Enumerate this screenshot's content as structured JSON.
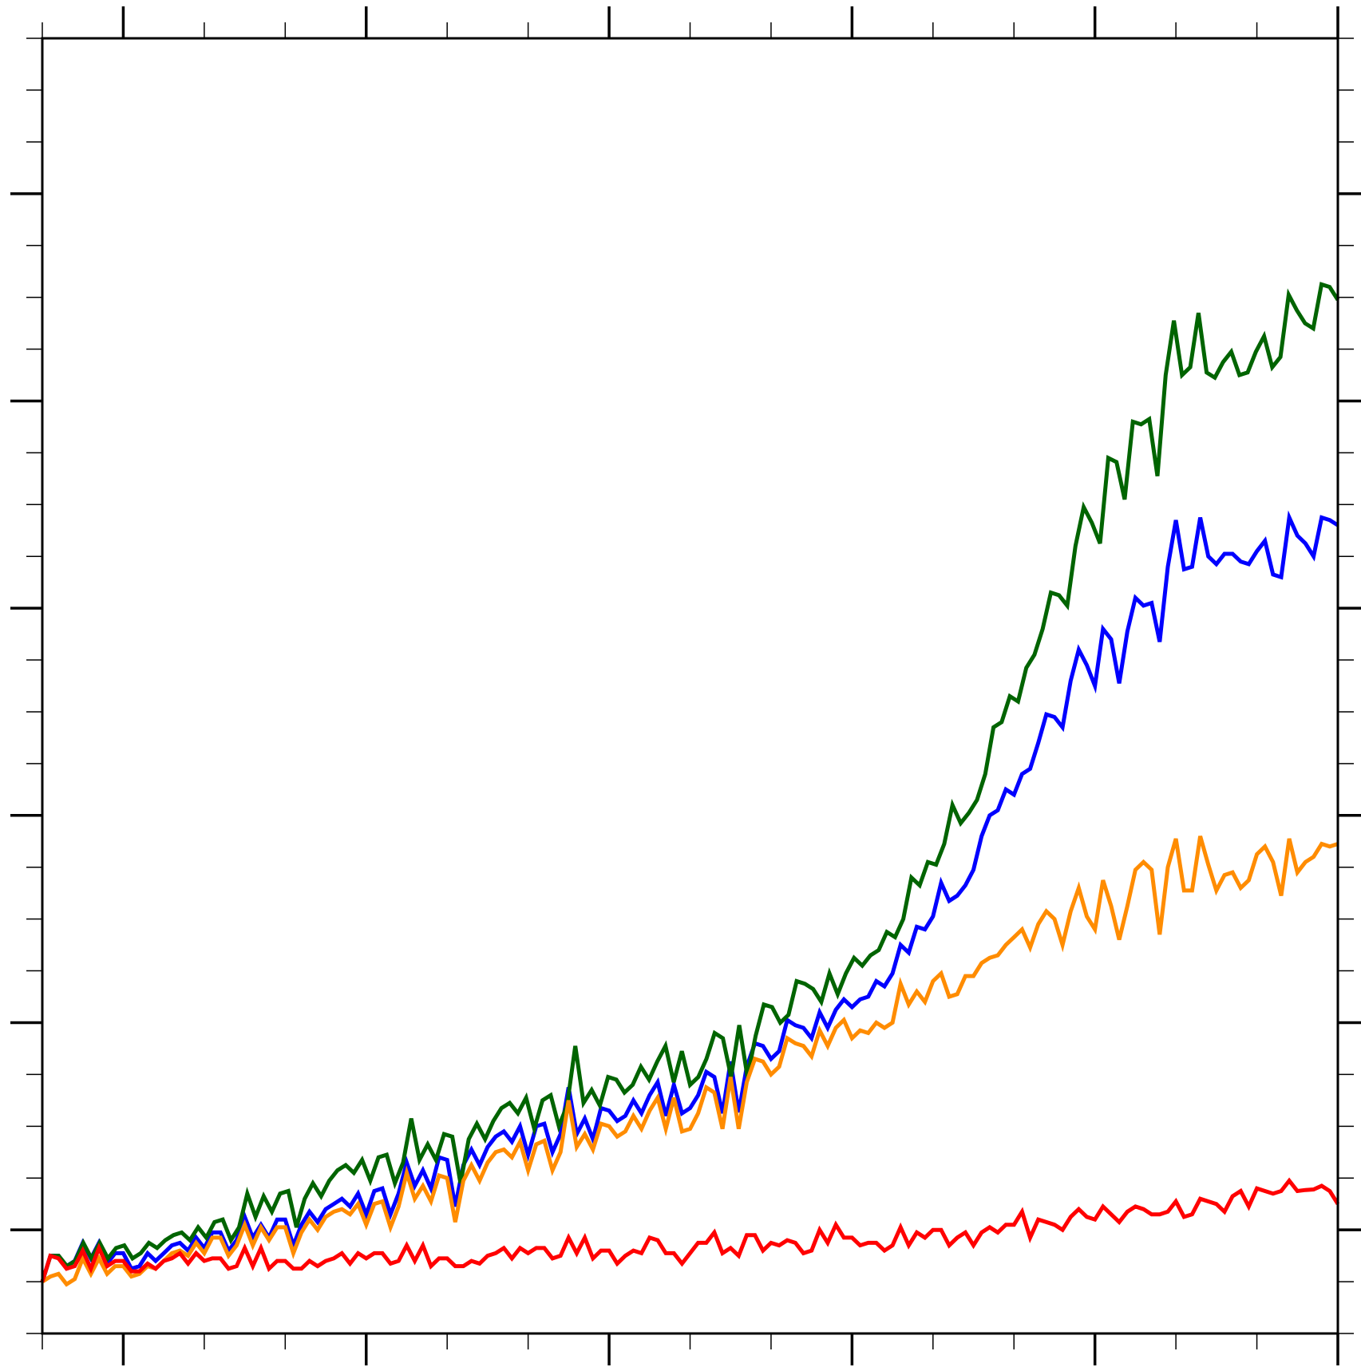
{
  "chart_data": {
    "type": "line",
    "title": "",
    "xlabel": "",
    "ylabel": "",
    "xlim": [
      0,
      160
    ],
    "ylim": [
      -2,
      23
    ],
    "x_major_step": 30,
    "x_minor_step": 10,
    "y_major_step": 4,
    "y_minor_step": 1,
    "grid": false,
    "legend": "none",
    "series": [
      {
        "color": "#0000ff",
        "values": [
          -1,
          -0.5,
          -0.5,
          -0.7,
          -0.6,
          -0.25,
          -0.55,
          -0.25,
          -0.65,
          -0.45,
          -0.45,
          -0.75,
          -0.7,
          -0.45,
          -0.6,
          -0.45,
          -0.3,
          -0.25,
          -0.4,
          -0.15,
          -0.35,
          -0.05,
          -0.05,
          -0.4,
          -0.2,
          0.25,
          -0.15,
          0.1,
          -0.15,
          0.2,
          0.2,
          -0.3,
          0.1,
          0.35,
          0.15,
          0.4,
          0.5,
          0.6,
          0.45,
          0.7,
          0.3,
          0.75,
          0.8,
          0.3,
          0.7,
          1.3,
          0.85,
          1.15,
          0.8,
          1.4,
          1.35,
          0.45,
          1.25,
          1.55,
          1.25,
          1.6,
          1.8,
          1.9,
          1.7,
          2,
          1.45,
          2,
          2.05,
          1.5,
          1.85,
          2.75,
          1.85,
          2.15,
          1.75,
          2.35,
          2.3,
          2.1,
          2.2,
          2.5,
          2.25,
          2.6,
          2.85,
          2.2,
          2.8,
          2.25,
          2.35,
          2.6,
          3.05,
          2.95,
          2.25,
          3.25,
          2.27,
          3.15,
          3.6,
          3.55,
          3.3,
          3.45,
          4.05,
          3.95,
          3.9,
          3.7,
          4.2,
          3.9,
          4.25,
          4.45,
          4.3,
          4.45,
          4.5,
          4.8,
          4.7,
          4.95,
          5.5,
          5.35,
          5.85,
          5.8,
          6.05,
          6.7,
          6.35,
          6.45,
          6.65,
          6.95,
          7.6,
          8.0,
          8.1,
          8.5,
          8.4,
          8.8,
          8.9,
          9.4,
          9.95,
          9.9,
          9.7,
          10.6,
          11.2,
          10.9,
          10.5,
          11.6,
          11.4,
          10.55,
          11.55,
          12.2,
          12.05,
          12.1,
          11.35,
          12.8,
          13.7,
          12.75,
          12.8,
          13.75,
          13.0,
          12.85,
          13.05,
          13.05,
          12.9,
          12.85,
          13.1,
          13.3,
          12.65,
          12.6,
          13.75,
          13.4,
          13.25,
          13.0,
          13.75,
          13.7,
          13.6
        ]
      },
      {
        "color": "#006400",
        "values": [
          -1,
          -0.5,
          -0.5,
          -0.7,
          -0.6,
          -0.25,
          -0.55,
          -0.25,
          -0.55,
          -0.35,
          -0.3,
          -0.55,
          -0.45,
          -0.25,
          -0.35,
          -0.2,
          -0.1,
          -0.05,
          -0.2,
          0.05,
          -0.15,
          0.15,
          0.2,
          -0.2,
          0.05,
          0.7,
          0.25,
          0.65,
          0.35,
          0.7,
          0.75,
          0.05,
          0.6,
          0.9,
          0.65,
          0.95,
          1.15,
          1.25,
          1.1,
          1.35,
          0.95,
          1.4,
          1.45,
          0.9,
          1.3,
          2.15,
          1.35,
          1.65,
          1.35,
          1.85,
          1.8,
          0.9,
          1.75,
          2.05,
          1.75,
          2.1,
          2.35,
          2.45,
          2.25,
          2.55,
          1.95,
          2.5,
          2.6,
          2.0,
          2.4,
          3.55,
          2.45,
          2.7,
          2.4,
          2.95,
          2.9,
          2.65,
          2.8,
          3.15,
          2.9,
          3.25,
          3.55,
          2.85,
          3.45,
          2.8,
          2.95,
          3.3,
          3.8,
          3.7,
          2.95,
          3.95,
          2.95,
          3.75,
          4.35,
          4.3,
          4.0,
          4.15,
          4.8,
          4.75,
          4.65,
          4.4,
          4.95,
          4.55,
          4.95,
          5.25,
          5.1,
          5.3,
          5.4,
          5.75,
          5.65,
          6.0,
          6.8,
          6.65,
          7.1,
          7.05,
          7.45,
          8.2,
          7.85,
          8.05,
          8.3,
          8.8,
          9.7,
          9.8,
          10.3,
          10.2,
          10.85,
          11.1,
          11.6,
          12.3,
          12.25,
          12.05,
          13.2,
          13.95,
          13.65,
          13.25,
          14.9,
          14.82,
          14.1,
          15.6,
          15.55,
          15.65,
          14.55,
          16.5,
          17.55,
          16.5,
          16.65,
          17.7,
          16.55,
          16.45,
          16.75,
          16.95,
          16.5,
          16.55,
          16.95,
          17.25,
          16.65,
          16.85,
          18.05,
          17.75,
          17.5,
          17.4,
          18.25,
          18.2,
          17.95
        ]
      },
      {
        "color": "#ff8c00",
        "values": [
          -1,
          -0.9,
          -0.85,
          -1.05,
          -0.95,
          -0.55,
          -0.85,
          -0.55,
          -0.85,
          -0.7,
          -0.7,
          -0.9,
          -0.85,
          -0.7,
          -0.75,
          -0.6,
          -0.45,
          -0.4,
          -0.5,
          -0.25,
          -0.45,
          -0.15,
          -0.15,
          -0.5,
          -0.3,
          0.1,
          -0.3,
          0.05,
          -0.2,
          0.05,
          0.05,
          -0.45,
          -0.05,
          0.2,
          0.0,
          0.25,
          0.35,
          0.4,
          0.3,
          0.5,
          0.1,
          0.5,
          0.55,
          0.05,
          0.45,
          1.1,
          0.6,
          0.85,
          0.55,
          1.05,
          1.0,
          0.15,
          0.95,
          1.25,
          0.95,
          1.3,
          1.5,
          1.55,
          1.4,
          1.7,
          1.15,
          1.65,
          1.72,
          1.15,
          1.5,
          2.5,
          1.6,
          1.85,
          1.55,
          2.05,
          2.0,
          1.8,
          1.9,
          2.2,
          1.95,
          2.3,
          2.55,
          1.95,
          2.55,
          1.9,
          1.95,
          2.25,
          2.75,
          2.65,
          1.95,
          2.95,
          1.95,
          2.85,
          3.3,
          3.25,
          3.0,
          3.15,
          3.7,
          3.6,
          3.55,
          3.35,
          3.85,
          3.55,
          3.9,
          4.05,
          3.7,
          3.85,
          3.8,
          4.0,
          3.9,
          4.0,
          4.75,
          4.35,
          4.6,
          4.4,
          4.8,
          4.95,
          4.5,
          4.55,
          4.9,
          4.9,
          5.15,
          5.25,
          5.3,
          5.5,
          5.65,
          5.8,
          5.45,
          5.9,
          6.15,
          6.0,
          5.5,
          6.15,
          6.6,
          6.05,
          5.8,
          6.75,
          6.25,
          5.6,
          6.25,
          6.95,
          7.1,
          6.95,
          5.7,
          7.0,
          7.55,
          6.55,
          6.55,
          7.6,
          7.05,
          6.55,
          6.85,
          6.9,
          6.6,
          6.75,
          7.25,
          7.4,
          7.1,
          6.45,
          7.55,
          6.9,
          7.1,
          7.2,
          7.45,
          7.4,
          7.45
        ]
      },
      {
        "color": "#ff0000",
        "values": [
          -1,
          -0.5,
          -0.55,
          -0.75,
          -0.7,
          -0.4,
          -0.75,
          -0.35,
          -0.7,
          -0.6,
          -0.6,
          -0.8,
          -0.8,
          -0.65,
          -0.75,
          -0.6,
          -0.55,
          -0.45,
          -0.65,
          -0.45,
          -0.6,
          -0.55,
          -0.55,
          -0.75,
          -0.7,
          -0.35,
          -0.7,
          -0.35,
          -0.75,
          -0.6,
          -0.6,
          -0.75,
          -0.75,
          -0.6,
          -0.7,
          -0.6,
          -0.55,
          -0.45,
          -0.65,
          -0.45,
          -0.55,
          -0.45,
          -0.45,
          -0.65,
          -0.6,
          -0.3,
          -0.6,
          -0.3,
          -0.7,
          -0.55,
          -0.55,
          -0.7,
          -0.7,
          -0.6,
          -0.65,
          -0.5,
          -0.45,
          -0.35,
          -0.55,
          -0.35,
          -0.45,
          -0.35,
          -0.35,
          -0.55,
          -0.5,
          -0.15,
          -0.45,
          -0.15,
          -0.55,
          -0.4,
          -0.4,
          -0.65,
          -0.5,
          -0.4,
          -0.45,
          -0.15,
          -0.2,
          -0.45,
          -0.45,
          -0.65,
          -0.45,
          -0.25,
          -0.25,
          -0.05,
          -0.45,
          -0.35,
          -0.5,
          -0.1,
          -0.1,
          -0.4,
          -0.25,
          -0.3,
          -0.2,
          -0.25,
          -0.45,
          -0.4,
          0.0,
          -0.25,
          0.1,
          -0.15,
          -0.15,
          -0.3,
          -0.25,
          -0.25,
          -0.4,
          -0.3,
          0.05,
          -0.3,
          -0.05,
          -0.15,
          0.0,
          0.0,
          -0.3,
          -0.15,
          -0.05,
          -0.3,
          -0.05,
          0.05,
          -0.05,
          0.1,
          0.1,
          0.35,
          -0.15,
          0.2,
          0.15,
          0.1,
          0.0,
          0.25,
          0.4,
          0.25,
          0.2,
          0.45,
          0.3,
          0.15,
          0.35,
          0.45,
          0.4,
          0.3,
          0.3,
          0.35,
          0.55,
          0.25,
          0.3,
          0.6,
          0.55,
          0.5,
          0.35,
          0.65,
          0.75,
          0.45,
          0.8,
          0.75,
          0.7,
          0.75,
          0.95,
          0.75,
          0.77,
          0.78,
          0.85,
          0.75,
          0.5
        ]
      }
    ]
  }
}
